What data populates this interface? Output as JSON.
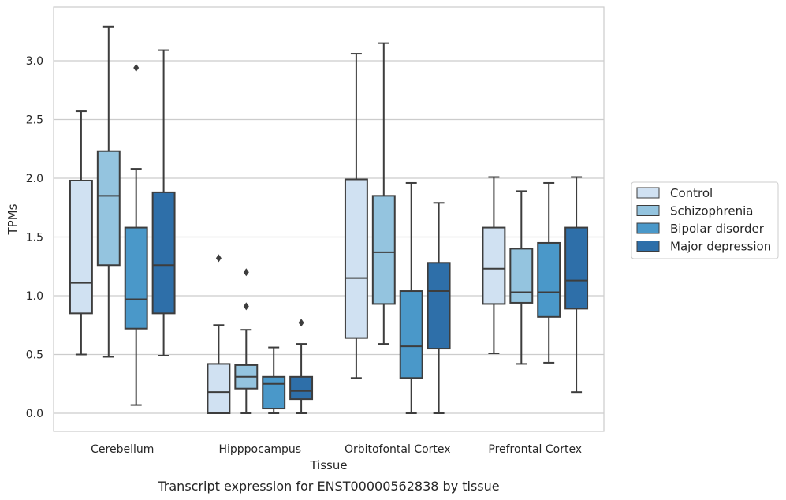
{
  "caption": "Transcript expression for ENST00000562838 by tissue",
  "chart_data": {
    "type": "boxplot",
    "xlabel": "Tissue",
    "ylabel": "TPMs",
    "ylim": [
      -0.15,
      3.45
    ],
    "yticks": [
      "0.0",
      "0.5",
      "1.0",
      "1.5",
      "2.0",
      "2.5",
      "3.0"
    ],
    "grid": "horizontal",
    "legend_position": "right",
    "categories": [
      "Cerebellum",
      "Hipppocampus",
      "Orbitofontal Cortex",
      "Prefrontal Cortex"
    ],
    "series": [
      {
        "name": "Control",
        "color": "#d0e1f2",
        "boxes": [
          {
            "whislo": 0.5,
            "q1": 0.85,
            "med": 1.11,
            "q3": 1.98,
            "whishi": 2.57,
            "fliers": []
          },
          {
            "whislo": 0.0,
            "q1": 0.0,
            "med": 0.18,
            "q3": 0.42,
            "whishi": 0.75,
            "fliers": [
              1.32
            ]
          },
          {
            "whislo": 0.3,
            "q1": 0.64,
            "med": 1.15,
            "q3": 1.99,
            "whishi": 3.06,
            "fliers": []
          },
          {
            "whislo": 0.51,
            "q1": 0.93,
            "med": 1.23,
            "q3": 1.58,
            "whishi": 2.01,
            "fliers": []
          }
        ]
      },
      {
        "name": "Schizophrenia",
        "color": "#94c4df",
        "boxes": [
          {
            "whislo": 0.48,
            "q1": 1.26,
            "med": 1.85,
            "q3": 2.23,
            "whishi": 3.29,
            "fliers": []
          },
          {
            "whislo": 0.0,
            "q1": 0.21,
            "med": 0.31,
            "q3": 0.41,
            "whishi": 0.71,
            "fliers": [
              1.2,
              0.91
            ]
          },
          {
            "whislo": 0.59,
            "q1": 0.93,
            "med": 1.37,
            "q3": 1.85,
            "whishi": 3.15,
            "fliers": []
          },
          {
            "whislo": 0.42,
            "q1": 0.94,
            "med": 1.03,
            "q3": 1.4,
            "whishi": 1.89,
            "fliers": []
          }
        ]
      },
      {
        "name": "Bipolar disorder",
        "color": "#4a98c9",
        "boxes": [
          {
            "whislo": 0.07,
            "q1": 0.72,
            "med": 0.97,
            "q3": 1.58,
            "whishi": 2.08,
            "fliers": [
              2.94
            ]
          },
          {
            "whislo": 0.0,
            "q1": 0.04,
            "med": 0.25,
            "q3": 0.31,
            "whishi": 0.56,
            "fliers": []
          },
          {
            "whislo": 0.0,
            "q1": 0.3,
            "med": 0.57,
            "q3": 1.04,
            "whishi": 1.96,
            "fliers": []
          },
          {
            "whislo": 0.43,
            "q1": 0.82,
            "med": 1.03,
            "q3": 1.45,
            "whishi": 1.96,
            "fliers": []
          }
        ]
      },
      {
        "name": "Major depression",
        "color": "#2e6fa9",
        "boxes": [
          {
            "whislo": 0.49,
            "q1": 0.85,
            "med": 1.26,
            "q3": 1.88,
            "whishi": 3.09,
            "fliers": []
          },
          {
            "whislo": 0.0,
            "q1": 0.12,
            "med": 0.19,
            "q3": 0.31,
            "whishi": 0.59,
            "fliers": [
              0.77
            ]
          },
          {
            "whislo": 0.0,
            "q1": 0.55,
            "med": 1.04,
            "q3": 1.28,
            "whishi": 1.79,
            "fliers": []
          },
          {
            "whislo": 0.18,
            "q1": 0.89,
            "med": 1.13,
            "q3": 1.58,
            "whishi": 2.01,
            "fliers": []
          }
        ]
      }
    ]
  }
}
